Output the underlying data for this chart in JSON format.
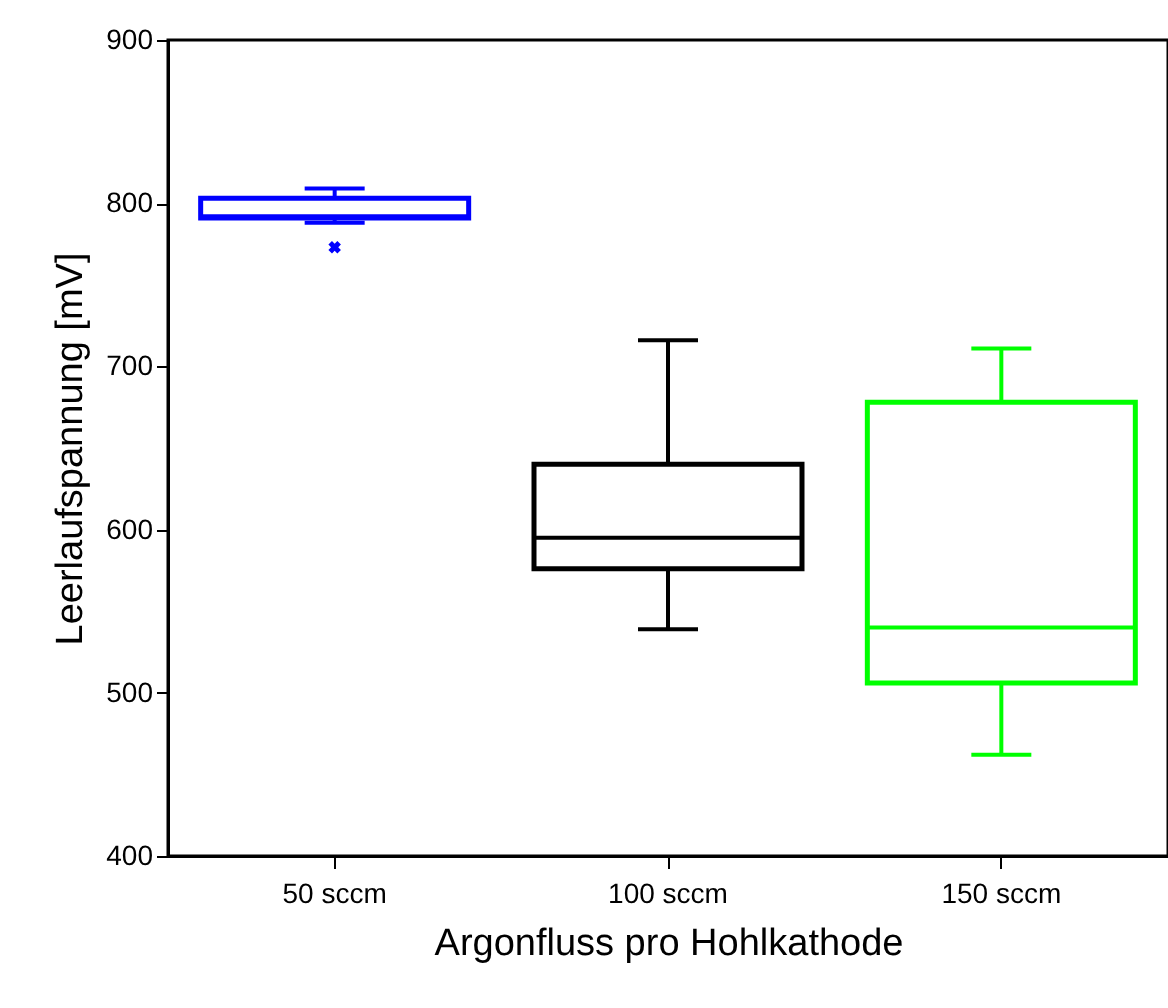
{
  "chart_data": {
    "type": "box",
    "xlabel": "Argonfluss pro Hohlkathode",
    "ylabel": "Leerlaufspannung [mV]",
    "categories": [
      "50 sccm",
      "100 sccm",
      "150 sccm"
    ],
    "colors": [
      "#0000ff",
      "#000000",
      "#00ff00"
    ],
    "boxes": [
      {
        "low": 788,
        "q1": 791,
        "median": 792,
        "q3": 803,
        "high": 809,
        "outliers": [
          773
        ]
      },
      {
        "low": 539,
        "q1": 576,
        "median": 595,
        "q3": 640,
        "high": 716
      },
      {
        "low": 462,
        "q1": 506,
        "median": 540,
        "q3": 678,
        "high": 711
      }
    ],
    "ylim": [
      400,
      900
    ],
    "yticks": [
      400,
      500,
      600,
      700,
      800,
      900
    ],
    "grid": false
  }
}
